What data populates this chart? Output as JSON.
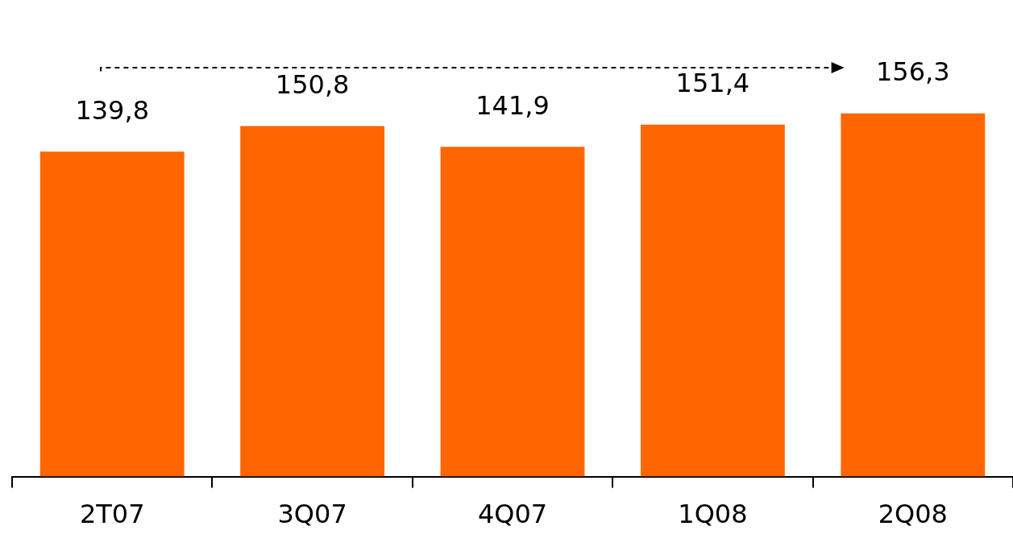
{
  "chart_data": {
    "type": "bar",
    "categories": [
      "2T07",
      "3Q07",
      "4Q07",
      "1Q08",
      "2Q08"
    ],
    "values": [
      139.8,
      150.8,
      141.9,
      151.4,
      156.3
    ],
    "value_labels": [
      "139,8",
      "150,8",
      "141,9",
      "151,4",
      "156,3"
    ],
    "color": "#ff6600",
    "tick_labels": "x",
    "grid": false,
    "legend": false
  }
}
